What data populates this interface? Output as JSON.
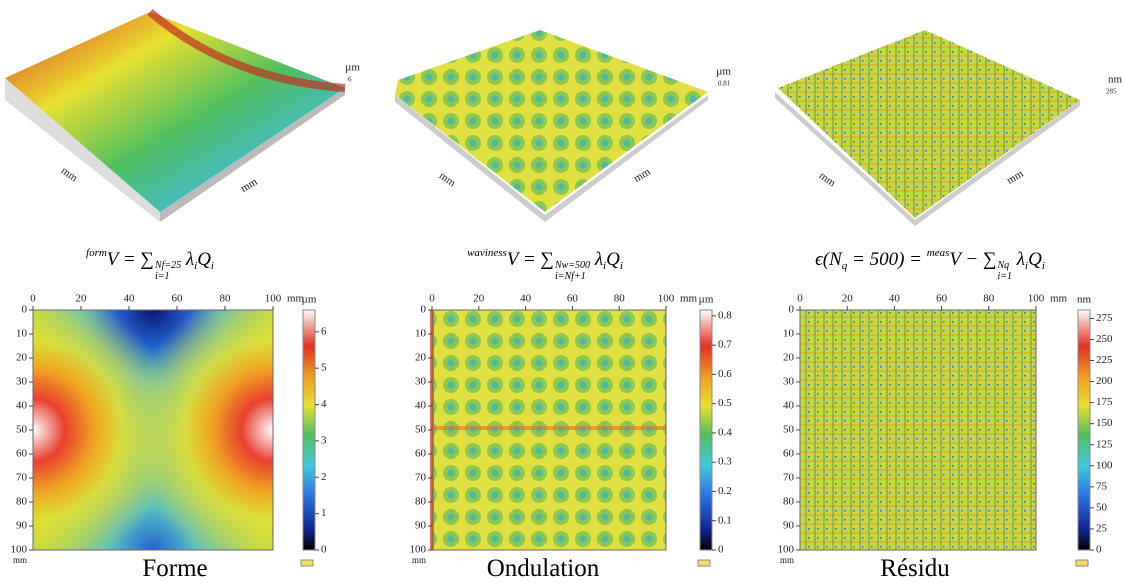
{
  "panels": [
    {
      "surface": {
        "unit": "µm",
        "z_top": "6",
        "axis_label": "mm"
      },
      "equation": [
        {
          "sup": "form"
        },
        {
          "t": "V = ∑"
        },
        {
          "over": "Nf=25",
          "under": "i=1"
        },
        {
          "t": " λ"
        },
        {
          "sub": "i"
        },
        {
          "t": "Q"
        },
        {
          "sub": "i"
        }
      ],
      "map": {
        "xlim": [
          0,
          100
        ],
        "xticks": [
          0,
          20,
          40,
          60,
          80,
          100
        ],
        "ylim": [
          0,
          100
        ],
        "yticks": [
          0,
          10,
          20,
          30,
          40,
          50,
          60,
          70,
          80,
          90,
          100
        ],
        "axis_unit": "mm",
        "colorbar": {
          "unit": "µm",
          "lim": [
            0,
            6.6
          ],
          "ticks": [
            0,
            1,
            2,
            3,
            4,
            5,
            6
          ]
        }
      },
      "caption": "Forme"
    },
    {
      "surface": {
        "unit": "µm",
        "z_top": "0.81",
        "axis_label": "mm"
      },
      "equation": [
        {
          "sup": "waviness"
        },
        {
          "t": "V = ∑"
        },
        {
          "over": "Nw=500",
          "under": "i=Nf+1"
        },
        {
          "t": " λ"
        },
        {
          "sub": "i"
        },
        {
          "t": "Q"
        },
        {
          "sub": "i"
        }
      ],
      "map": {
        "xlim": [
          0,
          100
        ],
        "xticks": [
          0,
          20,
          40,
          60,
          80,
          100
        ],
        "ylim": [
          0,
          100
        ],
        "yticks": [
          0,
          10,
          20,
          30,
          40,
          50,
          60,
          70,
          80,
          90,
          100
        ],
        "axis_unit": "mm",
        "colorbar": {
          "unit": "µm",
          "lim": [
            0,
            0.82
          ],
          "ticks": [
            0,
            0.1,
            0.2,
            0.3,
            0.4,
            0.5,
            0.6,
            0.7,
            0.8
          ]
        }
      },
      "caption": "Ondulation"
    },
    {
      "surface": {
        "unit": "nm",
        "z_top": "285",
        "axis_label": "mm"
      },
      "equation": [
        {
          "t": "ϵ(N"
        },
        {
          "sub": "q"
        },
        {
          "t": " = 500) = "
        },
        {
          "sup": "meas"
        },
        {
          "t": "V − ∑"
        },
        {
          "over": "Nq",
          "under": "i=1"
        },
        {
          "t": " λ"
        },
        {
          "sub": "i"
        },
        {
          "t": "Q"
        },
        {
          "sub": "i"
        }
      ],
      "map": {
        "xlim": [
          0,
          100
        ],
        "xticks": [
          0,
          20,
          40,
          60,
          80,
          100
        ],
        "ylim": [
          0,
          100
        ],
        "yticks": [
          0,
          10,
          20,
          30,
          40,
          50,
          60,
          70,
          80,
          90,
          100
        ],
        "axis_unit": "mm",
        "colorbar": {
          "unit": "nm",
          "lim": [
            0,
            285
          ],
          "ticks": [
            0,
            25,
            50,
            75,
            100,
            125,
            150,
            175,
            200,
            225,
            250,
            275
          ]
        }
      },
      "caption": "Résidu"
    }
  ]
}
